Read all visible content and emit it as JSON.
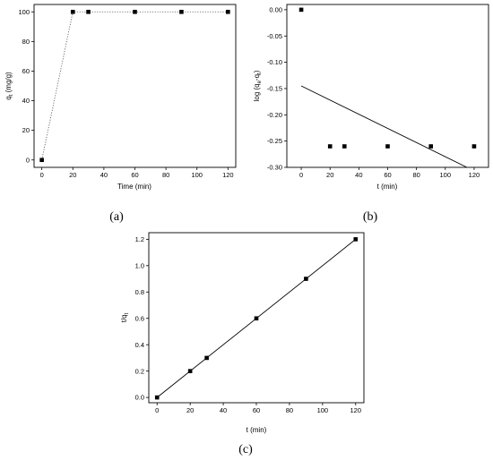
{
  "chart_data": [
    {
      "type": "scatter",
      "panel_label": "(a)",
      "xlabel": "Time (min)",
      "ylabel": "q",
      "ylabel_sub": "t",
      "ylabel_unit": " (mg/g)",
      "xlim": [
        -5,
        125
      ],
      "ylim": [
        -5,
        105
      ],
      "xticks": [
        0,
        20,
        40,
        60,
        80,
        100,
        120
      ],
      "yticks": [
        0,
        20,
        40,
        60,
        80,
        100
      ],
      "grid": false,
      "series": [
        {
          "x": [
            0,
            20,
            30,
            60,
            90,
            120
          ],
          "y": [
            0,
            100,
            100,
            100,
            100,
            100
          ],
          "marker": "square",
          "line": "dotted"
        }
      ]
    },
    {
      "type": "scatter",
      "panel_label": "(b)",
      "xlabel": "t (min)",
      "ylabel": "log (q",
      "ylabel_sub": "e",
      "ylabel_mid": "-q",
      "ylabel_sub2": "t",
      "ylabel_end": ")",
      "xlim": [
        -10,
        130
      ],
      "ylim": [
        -0.3,
        0.01
      ],
      "xticks": [
        0,
        20,
        40,
        60,
        80,
        100,
        120
      ],
      "yticks": [
        0.0,
        -0.05,
        -0.1,
        -0.15,
        -0.2,
        -0.25,
        -0.3
      ],
      "ytick_labels": [
        "0.00",
        "-0.05",
        "-0.10",
        "-0.15",
        "-0.20",
        "-0.25",
        "-0.30"
      ],
      "grid": false,
      "series": [
        {
          "x": [
            0,
            20,
            30,
            60,
            90,
            120
          ],
          "y": [
            0.0,
            -0.26,
            -0.26,
            -0.26,
            -0.26,
            -0.26
          ],
          "marker": "square"
        }
      ],
      "fit_line": {
        "x": [
          0,
          115
        ],
        "y": [
          -0.145,
          -0.3
        ]
      }
    },
    {
      "type": "scatter",
      "panel_label": "(c)",
      "xlabel": "t (min)",
      "ylabel": "t/q",
      "ylabel_sub": "t",
      "xlim": [
        -5,
        125
      ],
      "ylim": [
        -0.04,
        1.25
      ],
      "xticks": [
        0,
        20,
        40,
        60,
        80,
        100,
        120
      ],
      "yticks": [
        0.0,
        0.2,
        0.4,
        0.6,
        0.8,
        1.0,
        1.2
      ],
      "ytick_labels": [
        "0.0",
        "0.2",
        "0.4",
        "0.6",
        "0.8",
        "1.0",
        "1.2"
      ],
      "grid": false,
      "series": [
        {
          "x": [
            0,
            20,
            30,
            60,
            90,
            120
          ],
          "y": [
            0.0,
            0.2,
            0.3,
            0.6,
            0.9,
            1.2
          ],
          "marker": "square"
        }
      ],
      "fit_line": {
        "x": [
          0,
          120
        ],
        "y": [
          0.0,
          1.2
        ]
      }
    }
  ]
}
